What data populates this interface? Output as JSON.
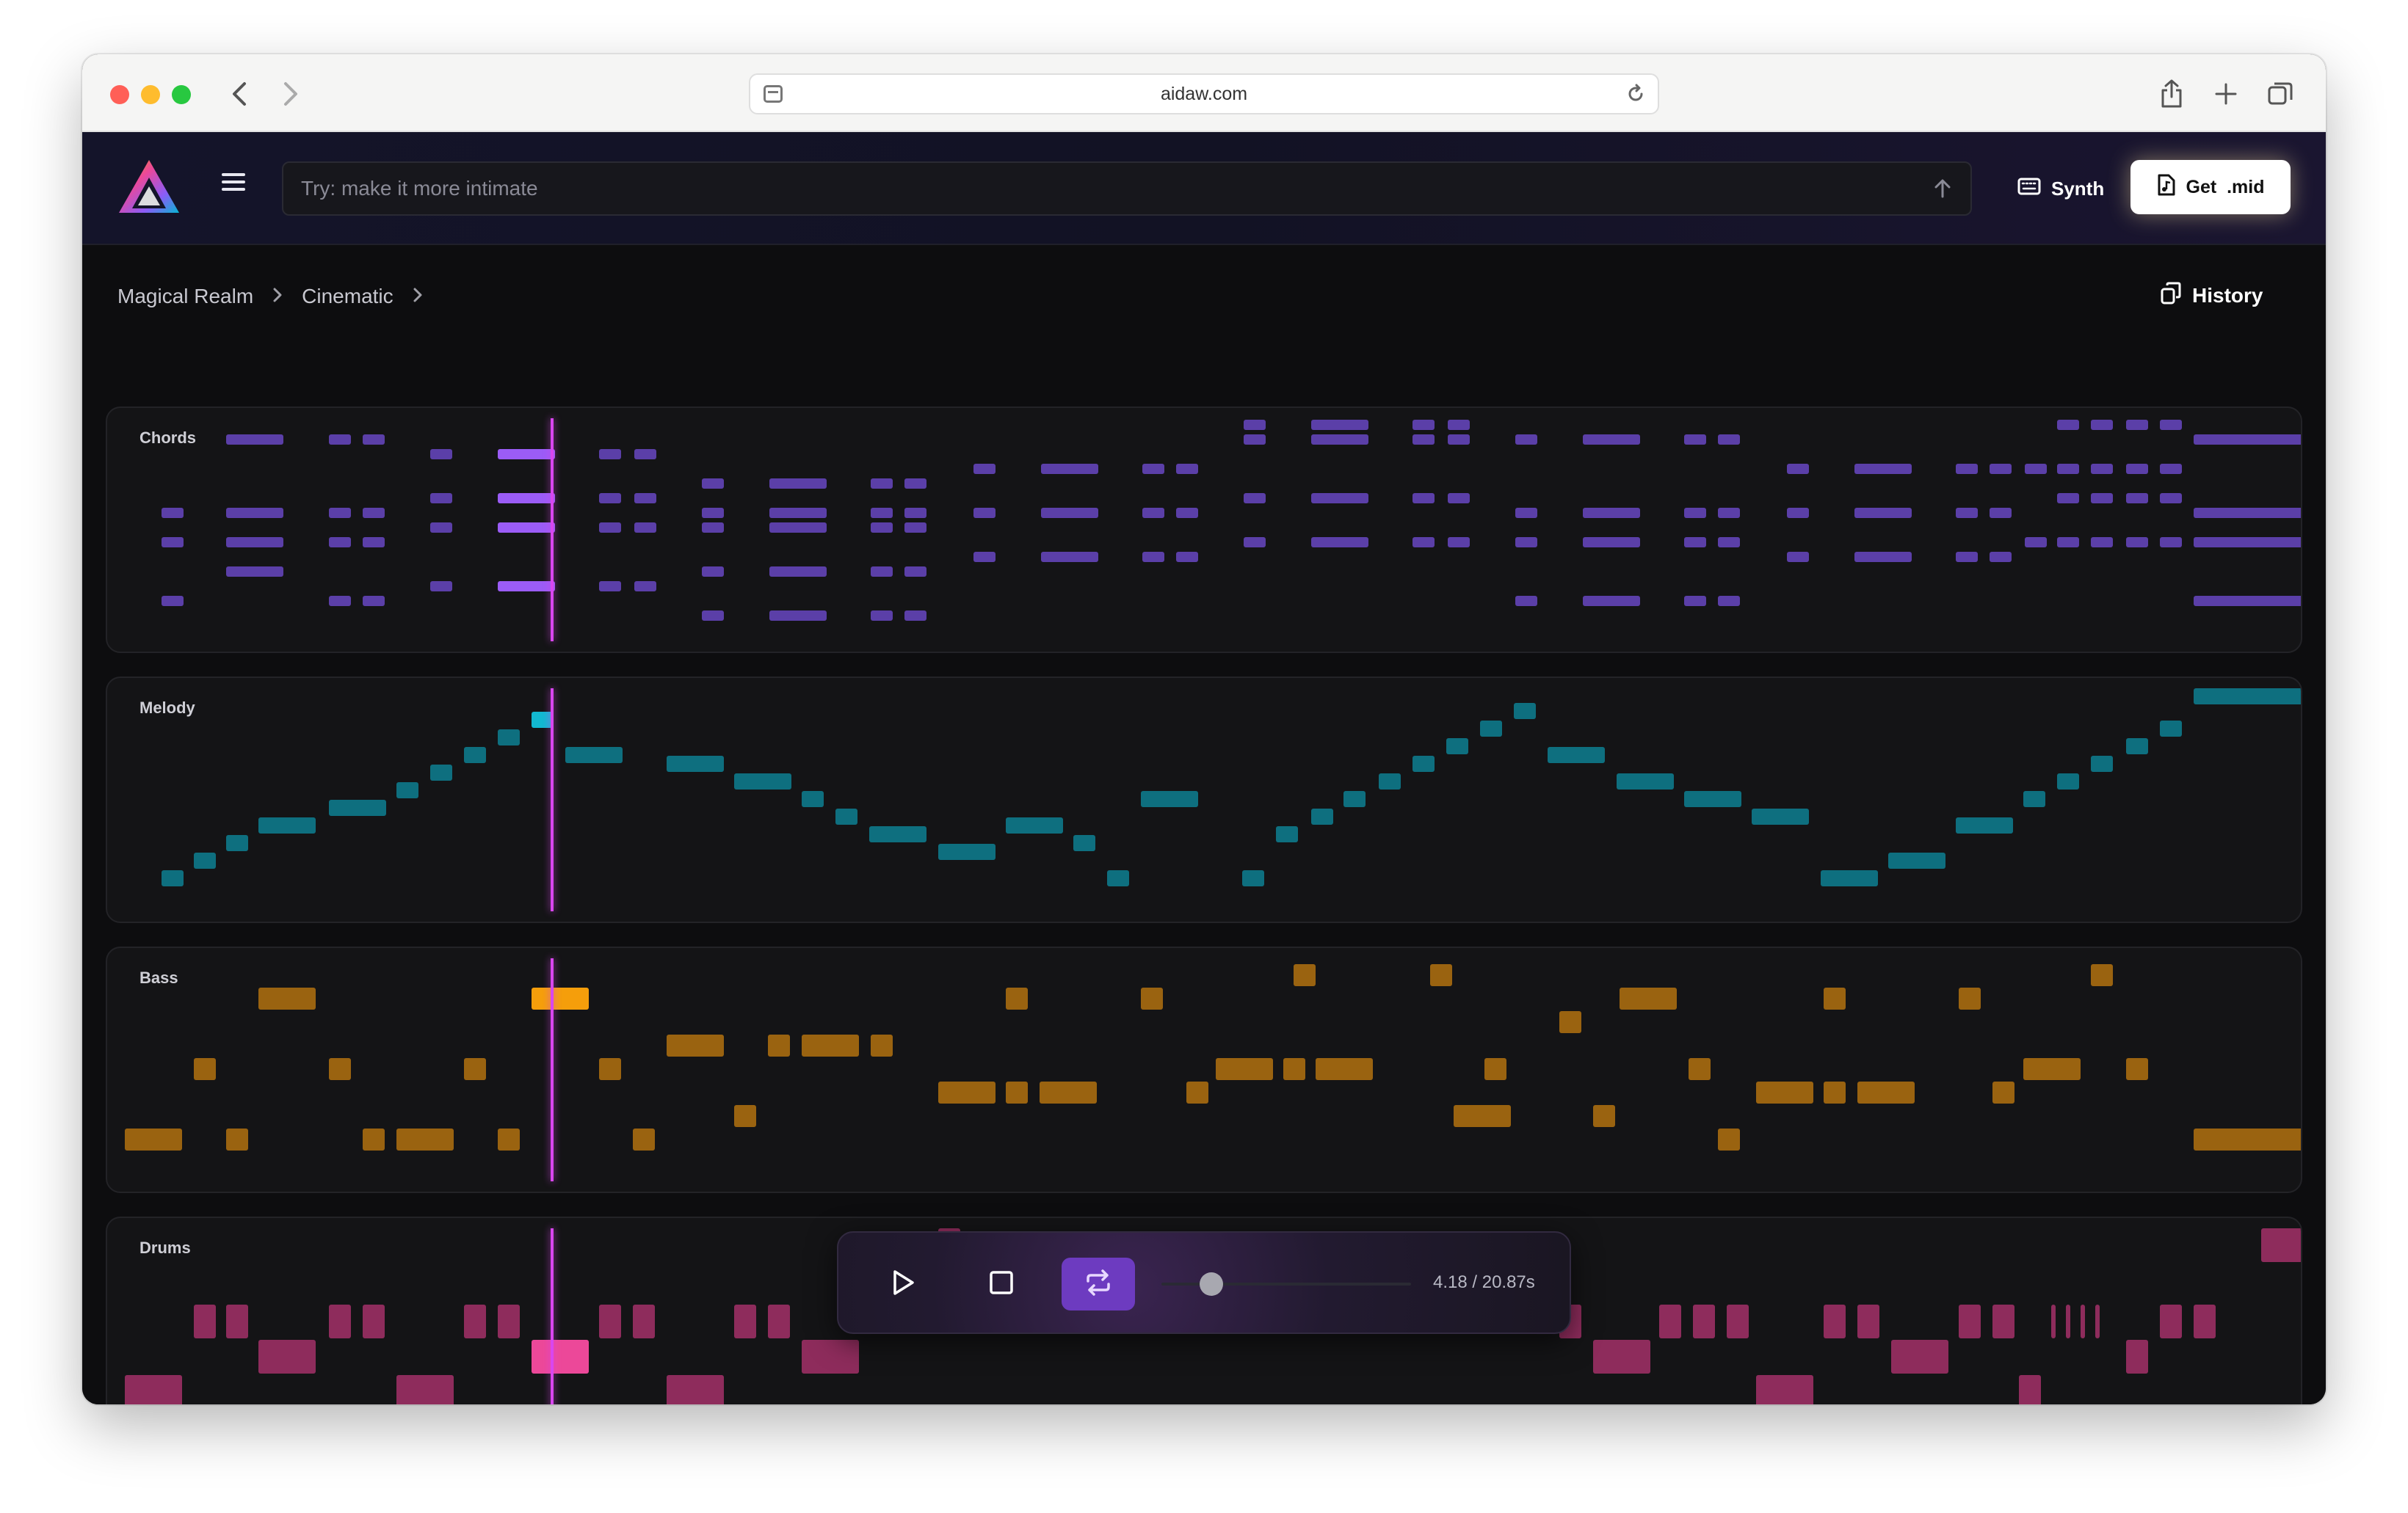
{
  "browser": {
    "url": "aidaw.com",
    "icons": [
      "chevron-left-icon",
      "chevron-right-icon",
      "tab-icon",
      "reload-icon",
      "share-icon",
      "plus-icon",
      "tabs-icon"
    ]
  },
  "header": {
    "prompt_placeholder": "Try: make it more intimate",
    "synth_label": "Synth",
    "get_label": "Get  .mid"
  },
  "breadcrumb": {
    "items": [
      "Magical Realm",
      "Cinematic"
    ]
  },
  "history_label": "History",
  "colors": {
    "chords": "#5b3fa8",
    "chords_active": "#9b5cf6",
    "melody": "#0e6f7f",
    "melody_active": "#12b8d0",
    "bass": "#9a6310",
    "bass_active": "#f59e0b",
    "drums": "#8e2c5c",
    "drums_active": "#ec4899",
    "playhead": "#d946ef"
  },
  "tracks": [
    {
      "id": "chords",
      "label": "Chords"
    },
    {
      "id": "melody",
      "label": "Melody"
    },
    {
      "id": "bass",
      "label": "Bass"
    },
    {
      "id": "drums",
      "label": "Drums"
    }
  ],
  "transport": {
    "time_current": "4.18",
    "time_total": "20.87s",
    "time_text": "4.18 / 20.87s",
    "position_fraction": 0.2
  }
}
